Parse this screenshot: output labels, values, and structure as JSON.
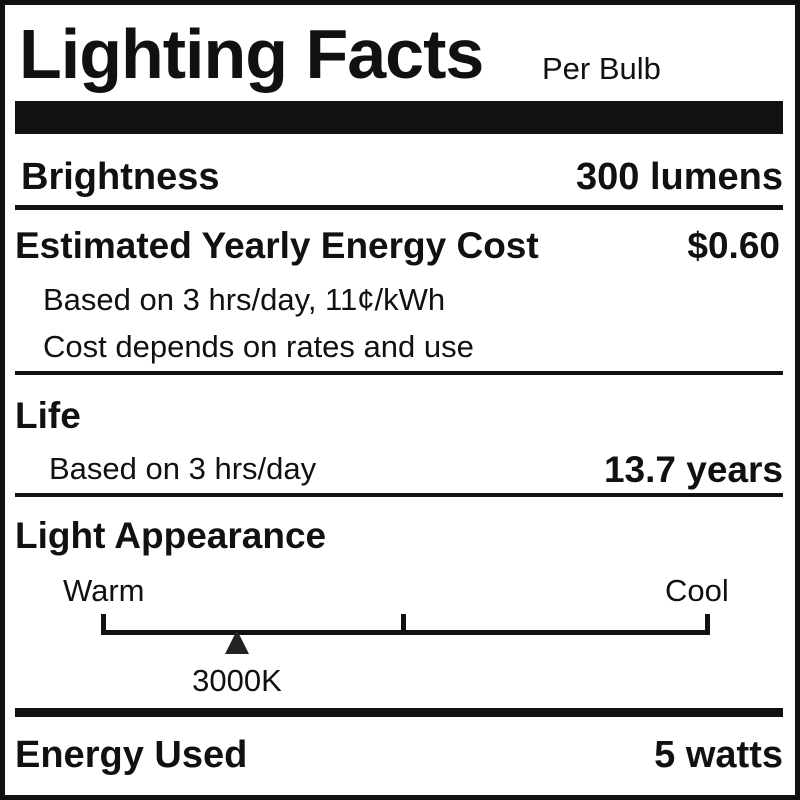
{
  "header": {
    "title": "Lighting Facts",
    "subtitle": "Per Bulb"
  },
  "brightness": {
    "label": "Brightness",
    "value": "300 lumens"
  },
  "cost": {
    "label": "Estimated Yearly Energy Cost",
    "value": "$0.60",
    "note1": "Based on 3 hrs/day, 11¢/kWh",
    "note2": "Cost depends on rates and use"
  },
  "life": {
    "label": "Life",
    "note": "Based on 3 hrs/day",
    "value": "13.7 years"
  },
  "appearance": {
    "label": "Light Appearance",
    "warm_label": "Warm",
    "cool_label": "Cool",
    "marker_label": "3000K",
    "marker_position_fraction": 0.23
  },
  "energy": {
    "label": "Energy Used",
    "value": "5 watts"
  },
  "colors": {
    "ink": "#111111",
    "background": "#ffffff"
  }
}
